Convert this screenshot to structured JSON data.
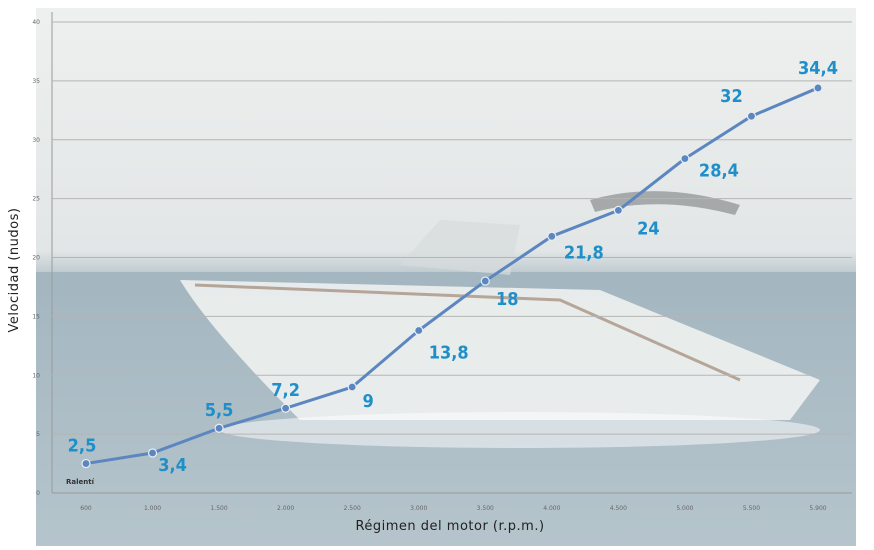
{
  "chart_data": {
    "type": "line",
    "xlabel": "Régimen del motor (r.p.m.)",
    "ylabel": "Velocidad (nudos)",
    "x_tick_labels": [
      "600",
      "1.000",
      "1.500",
      "2.000",
      "2.500",
      "3.000",
      "3.500",
      "4.000",
      "4.500",
      "5.000",
      "5.500",
      "5.900"
    ],
    "y_tick_labels": [
      "0",
      "5",
      "10",
      "15",
      "20",
      "25",
      "30",
      "35",
      "40"
    ],
    "ylim": [
      0,
      40
    ],
    "grid": true,
    "idle_label": "Ralentí",
    "series": [
      {
        "values": [
          2.5,
          3.4,
          5.5,
          7.2,
          9,
          13.8,
          18,
          21.8,
          24,
          28.4,
          32,
          34.4
        ],
        "data_labels": [
          "2,5",
          "3,4",
          "5,5",
          "7,2",
          "9",
          "13,8",
          "18",
          "21,8",
          "24",
          "28,4",
          "32",
          "34,4"
        ],
        "color": "#5b86c0"
      }
    ],
    "label_color": "#1f8fc9"
  }
}
